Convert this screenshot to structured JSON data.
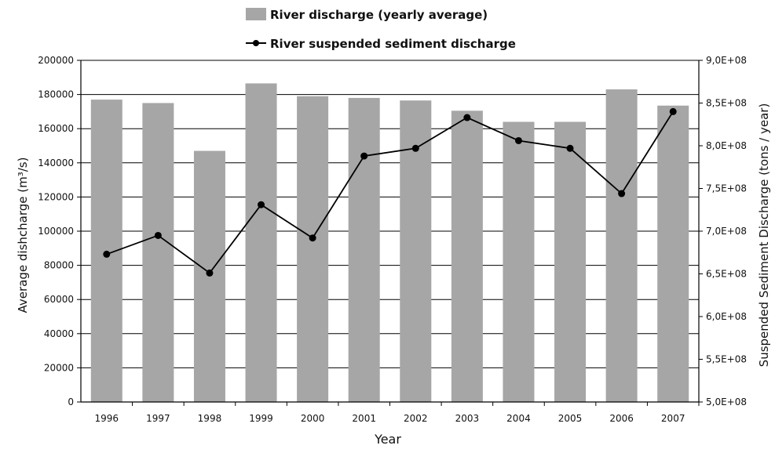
{
  "chart_data": {
    "type": "bar",
    "categories": [
      "1996",
      "1997",
      "1998",
      "1999",
      "2000",
      "2001",
      "2002",
      "2003",
      "2004",
      "2005",
      "2006",
      "2007"
    ],
    "series": [
      {
        "name": "River discharge (yearly average)",
        "type": "bar",
        "axis": "left",
        "values": [
          177000,
          175000,
          147000,
          186500,
          179000,
          178000,
          176500,
          170500,
          164000,
          164000,
          183000,
          173500
        ]
      },
      {
        "name": "River suspended sediment discharge",
        "type": "line",
        "axis": "right",
        "values": [
          673000000,
          695000000,
          651000000,
          731000000,
          692000000,
          788000000,
          797000000,
          833000000,
          806000000,
          797000000,
          744000000,
          840000000
        ]
      }
    ],
    "xlabel": "Year",
    "ylabel": "Average dishcharge  (m³/s)",
    "y2label": "Suspended Sediment Discharge (tons / year)",
    "ylim": [
      0,
      200000
    ],
    "y2lim": [
      500000000,
      900000000
    ],
    "yticks": [
      "0",
      "20000",
      "40000",
      "60000",
      "80000",
      "100000",
      "120000",
      "140000",
      "160000",
      "180000",
      "200000"
    ],
    "y2ticks": [
      "5,0E+08",
      "5,5E+08",
      "6,0E+08",
      "6,5E+08",
      "7,0E+08",
      "7,5E+08",
      "8,0E+08",
      "8,5E+08",
      "9,0E+08"
    ],
    "grid": "horizontal",
    "legend_position": "top",
    "colors": {
      "bar": "#a6a6a6",
      "line": "#000000",
      "grid": "#000000"
    }
  }
}
